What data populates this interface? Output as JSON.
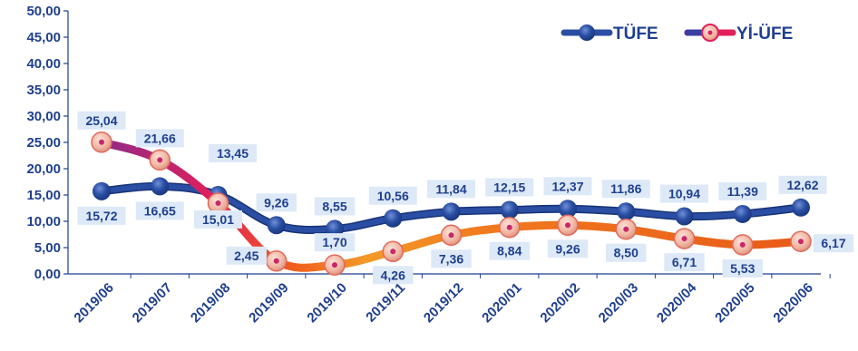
{
  "chart_data": {
    "type": "line",
    "categories": [
      "2019/06",
      "2019/07",
      "2019/08",
      "2019/09",
      "2019/10",
      "2019/11",
      "2019/12",
      "2020/01",
      "2020/02",
      "2020/03",
      "2020/04",
      "2020/05",
      "2020/06"
    ],
    "series": [
      {
        "name": "TÜFE",
        "values": [
          15.72,
          16.65,
          15.01,
          9.26,
          8.55,
          10.56,
          11.84,
          12.15,
          12.37,
          11.86,
          10.94,
          11.39,
          12.62
        ],
        "labels": [
          "15,72",
          "16,65",
          "15,01",
          "9,26",
          "8,55",
          "10,56",
          "11,84",
          "12,15",
          "12,37",
          "11,86",
          "10,94",
          "11,39",
          "12,62"
        ]
      },
      {
        "name": "Yİ-ÜFE",
        "values": [
          25.04,
          21.66,
          13.45,
          2.45,
          1.7,
          4.26,
          7.36,
          8.84,
          9.26,
          8.5,
          6.71,
          5.53,
          6.17
        ],
        "labels": [
          "25,04",
          "21,66",
          "13,45",
          "2,45",
          "1,70",
          "4,26",
          "7,36",
          "8,84",
          "9,26",
          "8,50",
          "6,71",
          "5,53",
          "6,17"
        ]
      }
    ],
    "y_ticks": [
      "0,00",
      "5,00",
      "10,00",
      "15,00",
      "20,00",
      "25,00",
      "30,00",
      "35,00",
      "40,00",
      "45,00",
      "50,00"
    ],
    "ylim": [
      0,
      50
    ],
    "legend_position": "top-right",
    "colors": {
      "tufe": "#2a4ea3",
      "tufe_dark": "#173378",
      "yiufe_start": "#8e2a8a",
      "yiufe_mid": "#e0205a",
      "yiufe_end": "#f07a20",
      "marker_yi": "#f2b8a6",
      "text": "#1f3f8f",
      "label_bg": "#dde9f7"
    },
    "title": "",
    "xlabel": "",
    "ylabel": ""
  }
}
